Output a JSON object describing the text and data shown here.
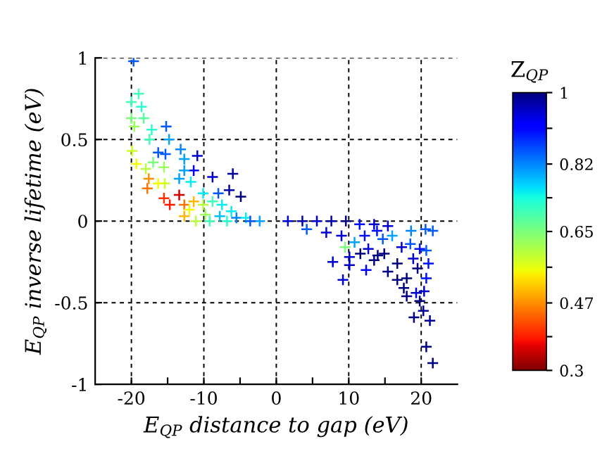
{
  "chart_data": {
    "type": "scatter",
    "xlabel": "E$_{QP}$ distance to gap (eV)",
    "ylabel": "E$_{QP}$ inverse lifetime (eV)",
    "clabel": "Z$_{QP}$",
    "xlim": [
      -25,
      25
    ],
    "xticks": [
      -20,
      {
        "value": -15,
        "label": null
      },
      -10,
      {
        "value": -5,
        "label": null
      },
      0,
      {
        "value": 5,
        "label": null
      },
      10,
      {
        "value": 15,
        "label": null
      },
      20
    ],
    "ylim": [
      -1,
      1
    ],
    "yticks": [
      -1,
      -0.5,
      0,
      0.5,
      1
    ],
    "clim": [
      0.3,
      1
    ],
    "cticks": [
      0.3,
      {
        "value": 0.385,
        "label": null
      },
      0.47,
      {
        "value": 0.56,
        "label": null
      },
      0.65,
      {
        "value": 0.735,
        "label": null
      },
      0.82,
      {
        "value": 0.91,
        "label": null
      },
      1
    ],
    "grid": true,
    "marker": "cross",
    "series": [
      {
        "x": [
          -19.7,
          -19,
          -20,
          -18.6,
          -18.3,
          -20,
          -19.6,
          -17.2,
          -15.2,
          -14.8,
          -17.5,
          -19.9,
          -19.3,
          -16.3,
          -15.3,
          -13.2,
          -17,
          -18,
          -15.5,
          -12.7,
          -10.9,
          -11.4,
          -12.7,
          -15.4,
          -17.6,
          -17.8,
          -16.3,
          -13.4,
          -11.8,
          -10.1,
          -8.8,
          -6,
          -4.9,
          -6.5,
          -8,
          -15.5,
          -14.7,
          -13.4,
          -12.7,
          -11.4,
          -12.7,
          -12,
          -10.1,
          -9.8,
          -8.8,
          -7.5,
          -7.8,
          -6.2,
          -5.5,
          -4.2,
          -2.3,
          -3.6,
          -11.1,
          -9.2,
          -6.8,
          1.6,
          3.6,
          5.6,
          7.6,
          9.6,
          11.5,
          13.5,
          15.4,
          4.2,
          6.9,
          7.8,
          9.2,
          10.1,
          12.4,
          9.5,
          10.8,
          12.7,
          14,
          14.7,
          16,
          16.7,
          17.3,
          18,
          18.6,
          18,
          19.3,
          19,
          20.3,
          21.2,
          20.6,
          21.6,
          20.7,
          21.6,
          19.8,
          20.4,
          20.7,
          21,
          20.7,
          19.5,
          15.4,
          16.7,
          17.6,
          13.5,
          11.6,
          9,
          12.2,
          14.9,
          18.9,
          18.5,
          19.8,
          10.1,
          13.9
        ],
        "values": [
          0.98,
          0.78,
          0.73,
          0.7,
          0.63,
          0.63,
          0.58,
          0.56,
          0.58,
          0.5,
          0.5,
          0.43,
          0.35,
          0.42,
          0.41,
          0.44,
          0.36,
          0.32,
          0.33,
          0.38,
          0.4,
          0.31,
          0.31,
          0.23,
          0.26,
          0.2,
          0.23,
          0.26,
          0.24,
          0.17,
          0.27,
          0.29,
          0.15,
          0.19,
          0.17,
          0.14,
          0.1,
          0.16,
          0.1,
          0.12,
          0.03,
          0.07,
          0.1,
          0.04,
          0.12,
          0.1,
          0.03,
          0.06,
          0.02,
          0.02,
          0,
          0,
          0,
          0,
          0,
          0,
          0,
          0,
          0,
          0,
          -0.02,
          -0.02,
          -0.03,
          -0.05,
          -0.07,
          -0.25,
          -0.36,
          -0.27,
          -0.3,
          -0.16,
          -0.13,
          -0.17,
          -0.21,
          -0.11,
          -0.09,
          -0.26,
          -0.16,
          -0.35,
          -0.06,
          -0.46,
          -0.44,
          -0.59,
          -0.55,
          -0.61,
          -0.05,
          -0.06,
          -0.77,
          -0.87,
          -0.49,
          -0.43,
          -0.35,
          -0.26,
          -0.18,
          -0.29,
          -0.31,
          -0.36,
          -0.41,
          -0.24,
          -0.2,
          -0.09,
          -0.09,
          -0.2,
          -0.23,
          -0.14,
          -0.17,
          -0.22,
          -0.06
        ],
        "cvalues": [
          0.85,
          0.7,
          0.7,
          0.72,
          0.68,
          0.65,
          0.62,
          0.72,
          0.85,
          0.8,
          0.7,
          0.58,
          0.55,
          0.85,
          0.85,
          0.82,
          0.65,
          0.6,
          0.62,
          0.8,
          0.95,
          0.92,
          0.8,
          0.58,
          0.47,
          0.45,
          0.55,
          0.8,
          0.75,
          0.75,
          0.95,
          0.98,
          1,
          0.97,
          0.85,
          0.4,
          0.38,
          0.35,
          0.45,
          0.5,
          0.5,
          0.55,
          0.6,
          0.62,
          0.7,
          0.75,
          0.78,
          0.75,
          0.82,
          0.75,
          0.8,
          0.85,
          0.6,
          0.7,
          0.72,
          0.95,
          0.97,
          0.95,
          0.97,
          1,
          0.9,
          0.95,
          0.95,
          0.85,
          0.95,
          0.95,
          0.95,
          0.95,
          0.92,
          0.65,
          0.8,
          0.95,
          1,
          0.85,
          0.8,
          1,
          0.95,
          1,
          0.82,
          1,
          0.95,
          1,
          0.98,
          0.98,
          0.85,
          0.85,
          1,
          1,
          1,
          0.95,
          0.9,
          0.9,
          0.85,
          1,
          1,
          1,
          1,
          1,
          1,
          0.95,
          0.9,
          1,
          0.95,
          0.85,
          0.9,
          0.95,
          0.9
        ]
      }
    ]
  }
}
